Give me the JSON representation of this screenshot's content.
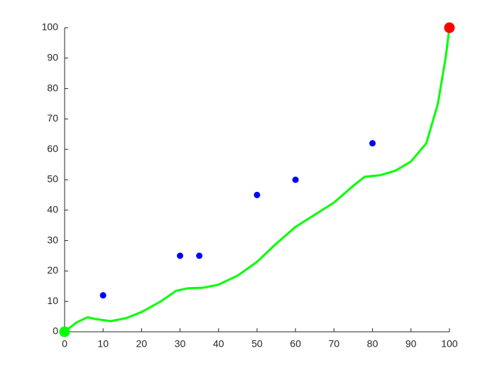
{
  "chart_data": {
    "type": "line",
    "xlim": [
      0,
      100
    ],
    "ylim": [
      0,
      100
    ],
    "xticks": [
      0,
      10,
      20,
      30,
      40,
      50,
      60,
      70,
      80,
      90,
      100
    ],
    "yticks": [
      0,
      10,
      20,
      30,
      40,
      50,
      60,
      70,
      80,
      90,
      100
    ],
    "series": [
      {
        "type": "line",
        "color": "#00ff00",
        "x": [
          0,
          3,
          6,
          8,
          12,
          16,
          20,
          25,
          29,
          32,
          36,
          40,
          45,
          50,
          55,
          60,
          65,
          70,
          75,
          78,
          82,
          86,
          90,
          94,
          97,
          99,
          100
        ],
        "values": [
          0,
          3,
          4.8,
          4.2,
          3.5,
          4.5,
          6.5,
          10,
          13.5,
          14.3,
          14.5,
          15.5,
          18.5,
          23,
          29,
          34.5,
          38.5,
          42.5,
          48,
          51,
          51.5,
          53,
          56,
          62,
          75,
          90,
          100
        ]
      },
      {
        "type": "scatter",
        "color": "#0000ff",
        "size": 4.5,
        "x": [
          10,
          30,
          35,
          50,
          60,
          80
        ],
        "values": [
          12,
          25,
          25,
          45,
          50,
          62
        ]
      },
      {
        "type": "scatter",
        "color": "#00ff00",
        "size": 7.5,
        "x": [
          0
        ],
        "values": [
          0
        ]
      },
      {
        "type": "scatter",
        "color": "#ff0000",
        "size": 7.5,
        "x": [
          100
        ],
        "values": [
          100
        ]
      }
    ]
  }
}
